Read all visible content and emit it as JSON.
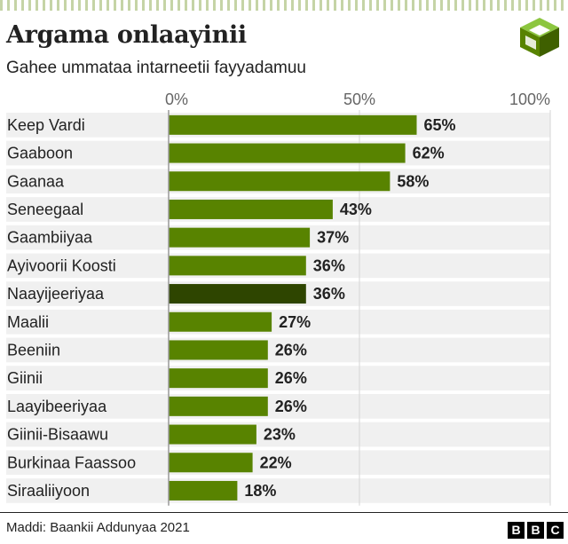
{
  "title": "Argama onlaayinii",
  "subtitle": "Gahee ummataa intarneetii fayyadamuu",
  "source": "Maddi: Baankii Addunyaa 2021",
  "brand": [
    "B",
    "B",
    "C"
  ],
  "logo_icon": "green-isometric-cube-icon",
  "colors": {
    "bar": "#588300",
    "highlight": "#2e4500",
    "row_band": "#f0f0f0",
    "stripe": "#588300",
    "tick_text": "#666666",
    "text": "#222222"
  },
  "chart_data": {
    "type": "bar",
    "orientation": "horizontal",
    "title": "Argama onlaayinii",
    "subtitle": "Gahee ummataa intarneetii fayyadamuu",
    "categories": [
      "Keep Vardi",
      "Gaaboon",
      "Gaanaa",
      "Seneegaal",
      "Gaambiiyaa",
      "Ayivoorii Koosti",
      "Naayijeeriyaa",
      "Maalii",
      "Beeniin",
      "Giinii",
      "Laayibeeriyaa",
      "Giinii-Bisaawu",
      "Burkinaa Faassoo",
      "Siraaliiyoon"
    ],
    "values": [
      65,
      62,
      58,
      43,
      37,
      36,
      36,
      27,
      26,
      26,
      26,
      23,
      22,
      18
    ],
    "value_labels": [
      "65%",
      "62%",
      "58%",
      "43%",
      "37%",
      "36%",
      "36%",
      "27%",
      "26%",
      "26%",
      "26%",
      "23%",
      "22%",
      "18%"
    ],
    "highlight": "Naayijeeriyaa",
    "xlim": [
      0,
      100
    ],
    "ticks": [
      0,
      50,
      100
    ],
    "tick_labels": [
      "0%",
      "50%",
      "100%"
    ],
    "grid": true,
    "xlabel": "",
    "ylabel": ""
  }
}
